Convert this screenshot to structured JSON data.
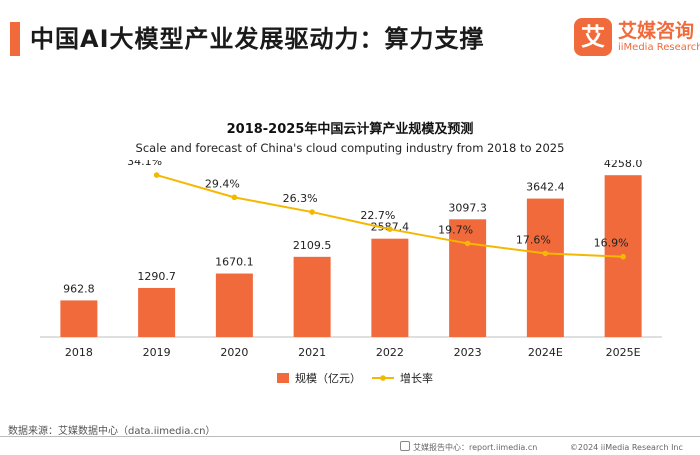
{
  "header": {
    "title": "中国AI大模型产业发展驱动力：算力支撑",
    "logo_mark": "艾",
    "logo_cn": "艾媒咨询",
    "logo_en": "iiMedia Research"
  },
  "chart_data": {
    "type": "bar",
    "title": "2018-2025年中国云计算产业规模及预测",
    "subtitle": "Scale and forecast of China's cloud computing industry from 2018 to 2025",
    "categories": [
      "2018",
      "2019",
      "2020",
      "2021",
      "2022",
      "2023",
      "2024E",
      "2025E"
    ],
    "series": [
      {
        "name": "规模（亿元）",
        "type": "bar",
        "axis": "left",
        "color": "#f06a3b",
        "values": [
          962.8,
          1290.7,
          1670.1,
          2109.5,
          2587.4,
          3097.3,
          3642.4,
          4258.0
        ],
        "labels": [
          "962.8",
          "1290.7",
          "1670.1",
          "2109.5",
          "2587.4",
          "3097.3",
          "3642.4",
          "4258.0"
        ]
      },
      {
        "name": "增长率",
        "type": "line",
        "axis": "right",
        "color": "#f5b800",
        "values": [
          null,
          34.1,
          29.4,
          26.3,
          22.7,
          19.7,
          17.6,
          16.9
        ],
        "labels": [
          null,
          "34.1%",
          "29.4%",
          "26.3%",
          "22.7%",
          "19.7%",
          "17.6%",
          "16.9%"
        ]
      }
    ],
    "ylim_left": [
      0,
      5000
    ],
    "ylim_right": [
      0,
      40
    ],
    "legend_position": "bottom",
    "grid": false
  },
  "footer": {
    "source": "数据来源：艾媒数据中心（data.iimedia.cn）",
    "report_center": "艾媒报告中心：report.iimedia.cn",
    "copyright": "©2024 iiMedia Research Inc"
  }
}
